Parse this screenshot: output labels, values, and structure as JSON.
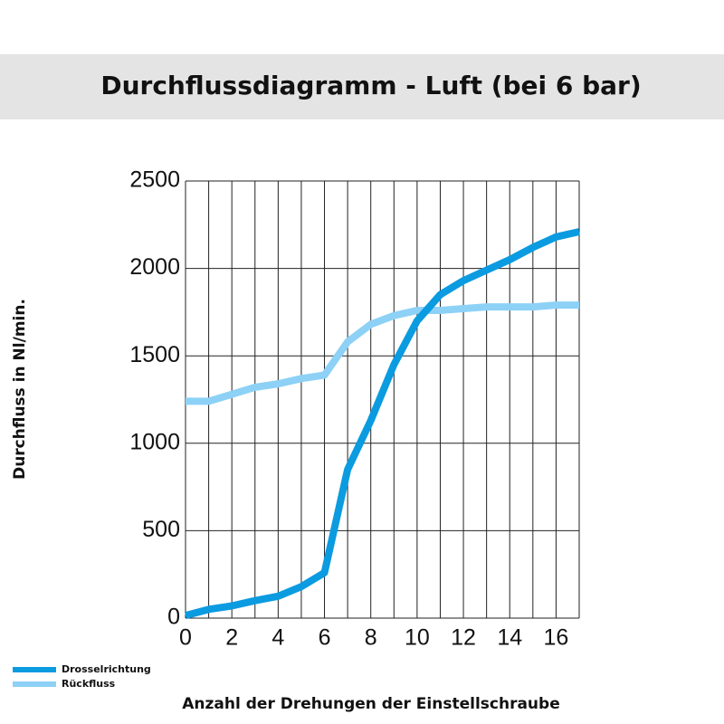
{
  "chart_data": {
    "type": "line",
    "title": "Durchflussdiagramm - Luft (bei 6 bar)",
    "x_label": "Anzahl der Drehungen der Einstellschraube",
    "y_label": "Durchfluss in Nl/min.",
    "x": [
      0,
      1,
      2,
      3,
      4,
      5,
      6,
      7,
      8,
      9,
      10,
      11,
      12,
      13,
      14,
      15,
      16,
      17
    ],
    "series": [
      {
        "name": "Drosselrichtung",
        "color": "#0b9be0",
        "values": [
          15,
          50,
          70,
          100,
          125,
          180,
          260,
          850,
          1130,
          1450,
          1700,
          1850,
          1930,
          1990,
          2050,
          2120,
          2180,
          2210
        ]
      },
      {
        "name": "Rückfluss",
        "color": "#8dd1f6",
        "values": [
          1240,
          1240,
          1280,
          1320,
          1340,
          1370,
          1390,
          1580,
          1680,
          1730,
          1760,
          1760,
          1770,
          1780,
          1780,
          1780,
          1790,
          1790
        ]
      }
    ],
    "xlim": [
      0,
      17
    ],
    "ylim": [
      0,
      2500
    ],
    "xticks": [
      0,
      2,
      4,
      6,
      8,
      10,
      12,
      14,
      16
    ],
    "yticks": [
      0,
      500,
      1000,
      1500,
      2000,
      2500
    ],
    "x_grid_step": 1,
    "grid": true,
    "legend": "bottom-left"
  }
}
